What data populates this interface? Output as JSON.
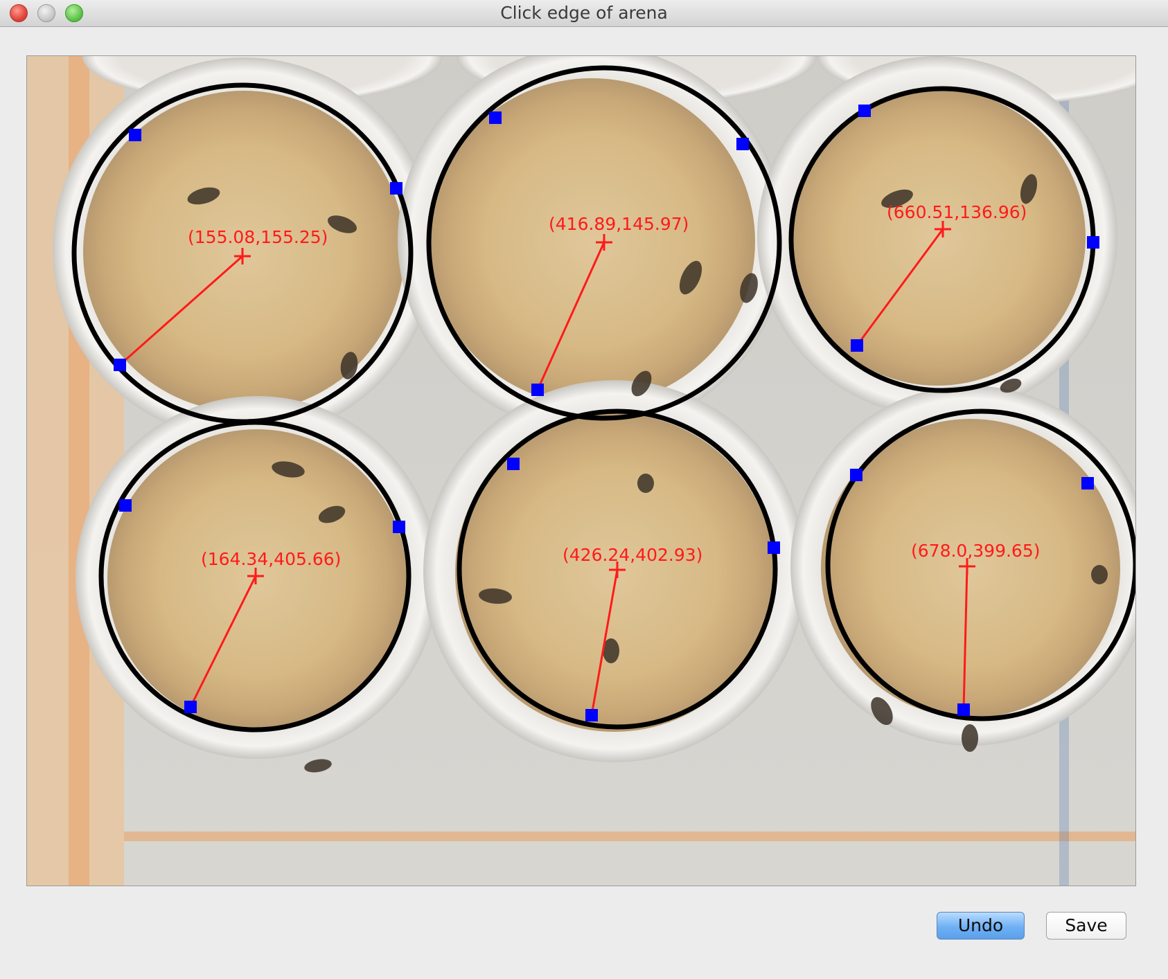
{
  "window": {
    "title": "Click edge of arena"
  },
  "buttons": {
    "undo": "Undo",
    "save": "Save"
  },
  "colors": {
    "circle": "#000000",
    "marker": "#0000ff",
    "annotation": "#ff1a1a",
    "food": "#d4b583"
  },
  "arenas": [
    {
      "label": "(155.08,155.25)"
    },
    {
      "label": "(416.89,145.97)"
    },
    {
      "label": "(660.51,136.96)"
    },
    {
      "label": "(164.34,405.66)"
    },
    {
      "label": "(426.24,402.93)"
    },
    {
      "label": "(678.0,399.65)"
    }
  ]
}
